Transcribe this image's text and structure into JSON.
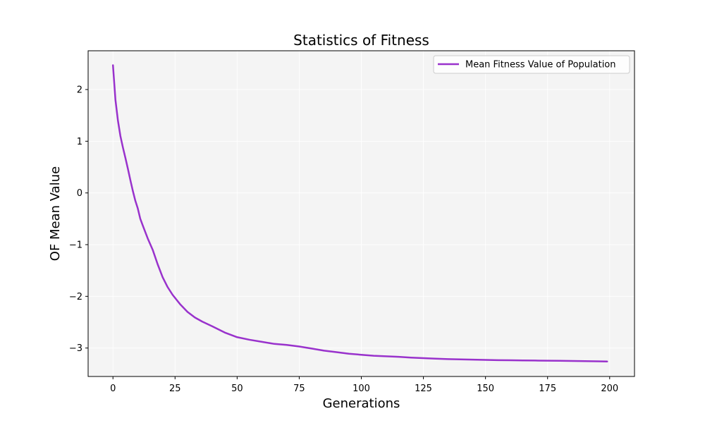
{
  "chart_data": {
    "type": "line",
    "title": "Statistics of Fitness",
    "xlabel": "Generations",
    "ylabel": "OF Mean Value",
    "xlim": [
      -10,
      210
    ],
    "ylim": [
      -3.55,
      2.75
    ],
    "xticks": [
      0,
      25,
      50,
      75,
      100,
      125,
      150,
      175,
      200
    ],
    "yticks": [
      -3,
      -2,
      -1,
      0,
      1,
      2
    ],
    "grid": true,
    "legend_position": "top-right",
    "background_color": "#f4f4f4",
    "series": [
      {
        "name": "Mean Fitness Value of Population",
        "color": "#9932cc",
        "x": [
          0,
          1,
          2,
          3,
          4,
          5,
          6,
          7,
          8,
          9,
          10,
          11,
          12,
          14,
          16,
          18,
          20,
          22,
          24,
          27,
          30,
          33,
          36,
          40,
          45,
          50,
          55,
          60,
          65,
          70,
          75,
          80,
          85,
          90,
          95,
          100,
          105,
          110,
          115,
          120,
          125,
          130,
          135,
          140,
          145,
          150,
          155,
          160,
          165,
          170,
          175,
          180,
          185,
          190,
          195,
          199
        ],
        "y": [
          2.47,
          1.8,
          1.4,
          1.1,
          0.88,
          0.68,
          0.47,
          0.25,
          0.04,
          -0.15,
          -0.3,
          -0.5,
          -0.63,
          -0.88,
          -1.1,
          -1.38,
          -1.63,
          -1.82,
          -1.97,
          -2.15,
          -2.3,
          -2.41,
          -2.49,
          -2.58,
          -2.7,
          -2.79,
          -2.84,
          -2.88,
          -2.92,
          -2.94,
          -2.97,
          -3.01,
          -3.05,
          -3.08,
          -3.11,
          -3.13,
          -3.15,
          -3.16,
          -3.17,
          -3.185,
          -3.195,
          -3.205,
          -3.215,
          -3.22,
          -3.225,
          -3.23,
          -3.235,
          -3.237,
          -3.24,
          -3.242,
          -3.245,
          -3.247,
          -3.25,
          -3.253,
          -3.257,
          -3.26
        ]
      }
    ]
  }
}
